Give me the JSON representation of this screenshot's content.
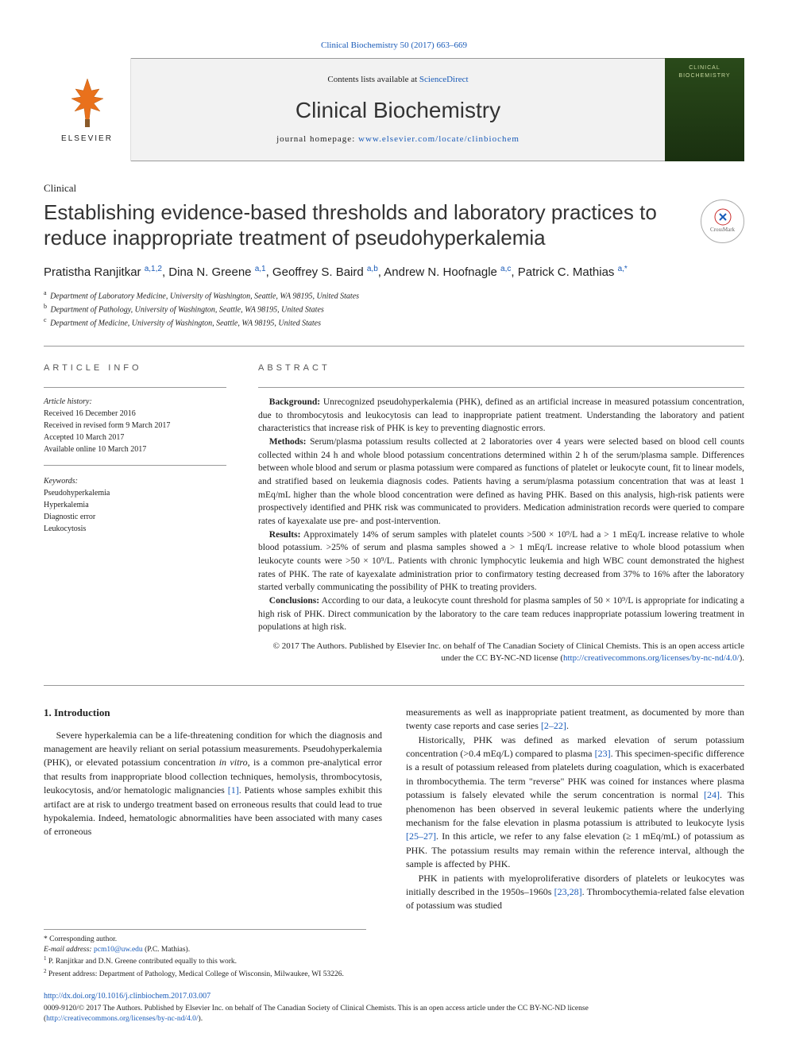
{
  "colors": {
    "link": "#1a5bb8",
    "text": "#222222",
    "rule": "#999999",
    "header_bg": "#f2f2f2",
    "cover_top": "#2a4a1a",
    "cover_bottom": "#1a3010",
    "elsevier_orange": "#e9711c"
  },
  "top_citation": "Clinical Biochemistry 50 (2017) 663–669",
  "header": {
    "contents_prefix": "Contents lists available at ",
    "contents_link": "ScienceDirect",
    "journal": "Clinical Biochemistry",
    "homepage_prefix": "journal homepage: ",
    "homepage_url": "www.elsevier.com/locate/clinbiochem",
    "elsevier_word": "ELSEVIER",
    "cover_label1": "CLINICAL",
    "cover_label2": "BIOCHEMISTRY"
  },
  "article": {
    "type": "Clinical",
    "title": "Establishing evidence-based thresholds and laboratory practices to reduce inappropriate treatment of pseudohyperkalemia",
    "crossmark": "CrossMark"
  },
  "authors_html": "Pratistha Ranjitkar <sup>a,1,2</sup>, Dina N. Greene <sup>a,1</sup>, Geoffrey S. Baird <sup>a,b</sup>, Andrew N. Hoofnagle <sup>a,c</sup>, Patrick C. Mathias <sup>a,*</sup>",
  "affiliations": [
    {
      "sup": "a",
      "text": "Department of Laboratory Medicine, University of Washington, Seattle, WA 98195, United States"
    },
    {
      "sup": "b",
      "text": "Department of Pathology, University of Washington, Seattle, WA 98195, United States"
    },
    {
      "sup": "c",
      "text": "Department of Medicine, University of Washington, Seattle, WA 98195, United States"
    }
  ],
  "info": {
    "heading": "article info",
    "history_label": "Article history:",
    "history": [
      "Received 16 December 2016",
      "Received in revised form 9 March 2017",
      "Accepted 10 March 2017",
      "Available online 10 March 2017"
    ],
    "keywords_label": "Keywords:",
    "keywords": [
      "Pseudohyperkalemia",
      "Hyperkalemia",
      "Diagnostic error",
      "Leukocytosis"
    ]
  },
  "abstract": {
    "heading": "abstract",
    "background_label": "Background:",
    "background": "Unrecognized pseudohyperkalemia (PHK), defined as an artificial increase in measured potassium concentration, due to thrombocytosis and leukocytosis can lead to inappropriate patient treatment. Understanding the laboratory and patient characteristics that increase risk of PHK is key to preventing diagnostic errors.",
    "methods_label": "Methods:",
    "methods": "Serum/plasma potassium results collected at 2 laboratories over 4 years were selected based on blood cell counts collected within 24 h and whole blood potassium concentrations determined within 2 h of the serum/plasma sample. Differences between whole blood and serum or plasma potassium were compared as functions of platelet or leukocyte count, fit to linear models, and stratified based on leukemia diagnosis codes. Patients having a serum/plasma potassium concentration that was at least 1 mEq/mL higher than the whole blood concentration were defined as having PHK. Based on this analysis, high-risk patients were prospectively identified and PHK risk was communicated to providers. Medication administration records were queried to compare rates of kayexalate use pre- and post-intervention.",
    "results_label": "Results:",
    "results": "Approximately 14% of serum samples with platelet counts >500 × 10⁹/L had a > 1 mEq/L increase relative to whole blood potassium. >25% of serum and plasma samples showed a > 1 mEq/L increase relative to whole blood potassium when leukocyte counts were >50 × 10⁹/L. Patients with chronic lymphocytic leukemia and high WBC count demonstrated the highest rates of PHK. The rate of kayexalate administration prior to confirmatory testing decreased from 37% to 16% after the laboratory started verbally communicating the possibility of PHK to treating providers.",
    "conclusions_label": "Conclusions:",
    "conclusions": "According to our data, a leukocyte count threshold for plasma samples of 50 × 10⁹/L is appropriate for indicating a high risk of PHK. Direct communication by the laboratory to the care team reduces inappropriate potassium lowering treatment in populations at high risk.",
    "copyright": "© 2017 The Authors. Published by Elsevier Inc. on behalf of The Canadian Society of Clinical Chemists. This is an open access article under the CC BY-NC-ND license (",
    "cc_url": "http://creativecommons.org/licenses/by-nc-nd/4.0/",
    "copyright_close": ")."
  },
  "body": {
    "section_heading": "1. Introduction",
    "col1_p1a": "Severe hyperkalemia can be a life-threatening condition for which the diagnosis and management are heavily reliant on serial potassium measurements. Pseudohyperkalemia (PHK), or elevated potassium concentration ",
    "col1_italic": "in vitro",
    "col1_p1b": ", is a common pre-analytical error that results from inappropriate blood collection techniques, hemolysis, thrombocytosis, leukocytosis, and/or hematologic malignancies ",
    "ref1": "[1]",
    "col1_p1c": ". Patients whose samples exhibit this artifact are at risk to undergo treatment based on erroneous results that could lead to true hypokalemia. Indeed, hematologic abnormalities have been associated with many cases of erroneous",
    "col2_p1a": "measurements as well as inappropriate patient treatment, as documented by more than twenty case reports and case series ",
    "ref2": "[2–22]",
    "col2_p1b": ".",
    "col2_p2a": "Historically, PHK was defined as marked elevation of serum potassium concentration (>0.4 mEq/L) compared to plasma ",
    "ref23": "[23]",
    "col2_p2b": ". This specimen-specific difference is a result of potassium released from platelets during coagulation, which is exacerbated in thrombocythemia. The term \"reverse\" PHK was coined for instances where plasma potassium is falsely elevated while the serum concentration is normal ",
    "ref24": "[24]",
    "col2_p2c": ". This phenomenon has been observed in several leukemic patients where the underlying mechanism for the false elevation in plasma potassium is attributed to leukocyte lysis ",
    "ref25": "[25–27]",
    "col2_p2d": ". In this article, we refer to any false elevation (≥ 1 mEq/mL) of potassium as PHK. The potassium results may remain within the reference interval, although the sample is affected by PHK.",
    "col2_p3a": "PHK in patients with myeloproliferative disorders of platelets or leukocytes was initially described in the 1950s–1960s ",
    "ref2328": "[23,28]",
    "col2_p3b": ". Thrombocythemia-related false elevation of potassium was studied"
  },
  "footnotes": {
    "corr": "* Corresponding author.",
    "email_label": "E-mail address: ",
    "email": "pcm10@uw.edu",
    "email_who": " (P.C. Mathias).",
    "fn1": "P. Ranjitkar and D.N. Greene contributed equally to this work.",
    "fn2": "Present address: Department of Pathology, Medical College of Wisconsin, Milwaukee, WI 53226."
  },
  "doi": "http://dx.doi.org/10.1016/j.clinbiochem.2017.03.007",
  "bottom": {
    "line1": "0009-9120/© 2017 The Authors. Published by Elsevier Inc. on behalf of The Canadian Society of Clinical Chemists. This is an open access article under the CC BY-NC-ND license",
    "line2_open": "(",
    "cc_url": "http://creativecommons.org/licenses/by-nc-nd/4.0/",
    "line2_close": ")."
  }
}
